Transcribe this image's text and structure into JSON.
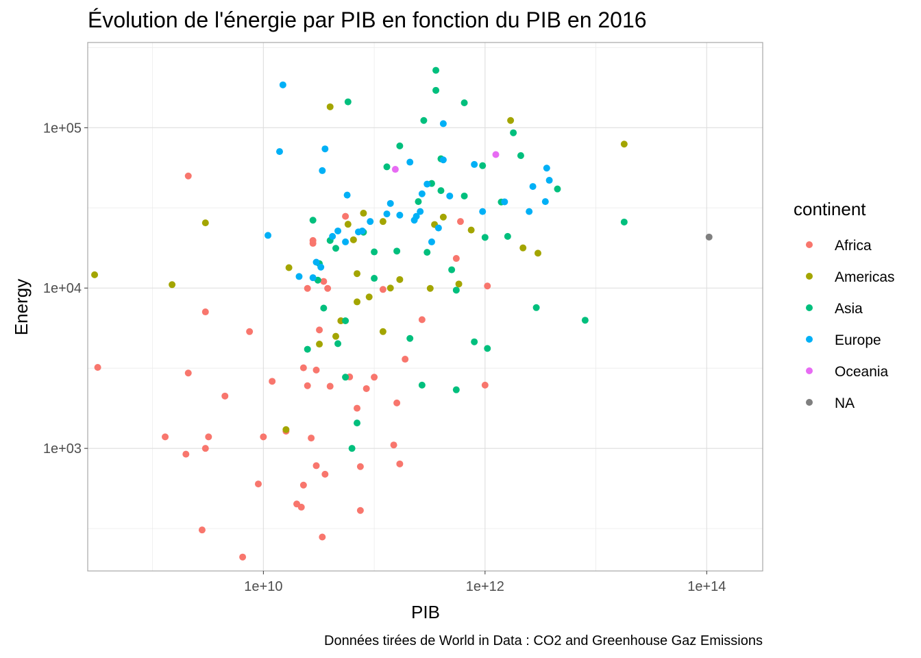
{
  "chart_data": {
    "type": "scatter",
    "title": "Évolution de l'énergie par PIB en fonction du PIB en 2016",
    "xlabel": "PIB",
    "ylabel": "Energy",
    "caption": "Données tirées de World in Data : CO2 and Greenhouse Gaz Emissions",
    "x_scale": "log10",
    "y_scale": "log10",
    "xlim": [
      260000000.0,
      320000000000000.0
    ],
    "ylim": [
      172,
      340000
    ],
    "x_ticks": [
      {
        "value": 10000000000.0,
        "label": "1e+10"
      },
      {
        "value": 1000000000000.0,
        "label": "1e+12"
      },
      {
        "value": 100000000000000.0,
        "label": "1e+14"
      }
    ],
    "y_ticks": [
      {
        "value": 1000,
        "label": "1e+03"
      },
      {
        "value": 10000,
        "label": "1e+04"
      },
      {
        "value": 100000,
        "label": "1e+05"
      }
    ],
    "grid": true,
    "legend": {
      "title": "continent",
      "position": "right"
    },
    "series": [
      {
        "name": "Africa",
        "color": "#F8766D",
        "points": [
          [
            320000000.0,
            3200
          ],
          [
            1300000000.0,
            1180
          ],
          [
            2000000000.0,
            920
          ],
          [
            2100000000.0,
            2950
          ],
          [
            2100000000.0,
            50000
          ],
          [
            2800000000.0,
            310
          ],
          [
            3000000000.0,
            7100
          ],
          [
            3000000000.0,
            1000
          ],
          [
            3200000000.0,
            1180
          ],
          [
            4500000000.0,
            2120
          ],
          [
            6500000000.0,
            210
          ],
          [
            7500000000.0,
            5350
          ],
          [
            9000000000.0,
            600
          ],
          [
            10000000000.0,
            1180
          ],
          [
            12000000000.0,
            2620
          ],
          [
            16000000000.0,
            1280
          ],
          [
            20000000000.0,
            450
          ],
          [
            22000000000.0,
            430
          ],
          [
            23000000000.0,
            590
          ],
          [
            23000000000.0,
            3180
          ],
          [
            25000000000.0,
            2460
          ],
          [
            25000000000.0,
            9950
          ],
          [
            27000000000.0,
            1160
          ],
          [
            28000000000.0,
            19000
          ],
          [
            28000000000.0,
            19800
          ],
          [
            30000000000.0,
            3080
          ],
          [
            30000000000.0,
            780
          ],
          [
            32000000000.0,
            5480
          ],
          [
            34000000000.0,
            280
          ],
          [
            35000000000.0,
            11000
          ],
          [
            36000000000.0,
            690
          ],
          [
            38000000000.0,
            9950
          ],
          [
            40000000000.0,
            2440
          ],
          [
            50000000000.0,
            6250
          ],
          [
            55000000000.0,
            28000
          ],
          [
            60000000000.0,
            2790
          ],
          [
            70000000000.0,
            1780
          ],
          [
            75000000000.0,
            410
          ],
          [
            75000000000.0,
            770
          ],
          [
            85000000000.0,
            2360
          ],
          [
            100000000000.0,
            2780
          ],
          [
            120000000000.0,
            9800
          ],
          [
            150000000000.0,
            1050
          ],
          [
            160000000000.0,
            1920
          ],
          [
            170000000000.0,
            800
          ],
          [
            190000000000.0,
            3600
          ],
          [
            270000000000.0,
            6350
          ],
          [
            550000000000.0,
            15300
          ],
          [
            600000000000.0,
            26000
          ],
          [
            1000000000000.0,
            2480
          ],
          [
            1050000000000.0,
            10300
          ]
        ]
      },
      {
        "name": "Americas",
        "color": "#A3A500",
        "points": [
          [
            300000000.0,
            12100
          ],
          [
            1500000000.0,
            10500
          ],
          [
            3000000000.0,
            25500
          ],
          [
            16000000000.0,
            1310
          ],
          [
            17000000000.0,
            13400
          ],
          [
            32000000000.0,
            4470
          ],
          [
            40000000000.0,
            135000
          ],
          [
            45000000000.0,
            5000
          ],
          [
            50000000000.0,
            6250
          ],
          [
            58000000000.0,
            25000
          ],
          [
            65000000000.0,
            20000
          ],
          [
            70000000000.0,
            12300
          ],
          [
            70000000000.0,
            8200
          ],
          [
            80000000000.0,
            29300
          ],
          [
            90000000000.0,
            8800
          ],
          [
            120000000000.0,
            5350
          ],
          [
            120000000000.0,
            26000
          ],
          [
            140000000000.0,
            10000
          ],
          [
            170000000000.0,
            11300
          ],
          [
            320000000000.0,
            9950
          ],
          [
            350000000000.0,
            24900
          ],
          [
            420000000000.0,
            27700
          ],
          [
            580000000000.0,
            10600
          ],
          [
            750000000000.0,
            23000
          ],
          [
            1700000000000.0,
            111000
          ],
          [
            2200000000000.0,
            17800
          ],
          [
            3000000000000.0,
            16500
          ],
          [
            18000000000000.0,
            79000
          ]
        ]
      },
      {
        "name": "Asia",
        "color": "#00BF7D",
        "points": [
          [
            25000000000.0,
            4150
          ],
          [
            28000000000.0,
            26500
          ],
          [
            31000000000.0,
            11200
          ],
          [
            32000000000.0,
            14200
          ],
          [
            35000000000.0,
            7500
          ],
          [
            40000000000.0,
            19800
          ],
          [
            45000000000.0,
            17700
          ],
          [
            47000000000.0,
            4500
          ],
          [
            55000000000.0,
            2780
          ],
          [
            55000000000.0,
            6250
          ],
          [
            58000000000.0,
            145000
          ],
          [
            63000000000.0,
            1000
          ],
          [
            70000000000.0,
            1440
          ],
          [
            80000000000.0,
            22300
          ],
          [
            100000000000.0,
            16800
          ],
          [
            100000000000.0,
            11500
          ],
          [
            130000000000.0,
            57000
          ],
          [
            160000000000.0,
            17000
          ],
          [
            170000000000.0,
            77000
          ],
          [
            210000000000.0,
            4850
          ],
          [
            250000000000.0,
            34600
          ],
          [
            270000000000.0,
            2480
          ],
          [
            280000000000.0,
            111000
          ],
          [
            300000000000.0,
            16700
          ],
          [
            330000000000.0,
            44900
          ],
          [
            360000000000.0,
            171000
          ],
          [
            360000000000.0,
            228000
          ],
          [
            400000000000.0,
            40500
          ],
          [
            400000000000.0,
            64000
          ],
          [
            500000000000.0,
            13000
          ],
          [
            550000000000.0,
            9700
          ],
          [
            550000000000.0,
            2320
          ],
          [
            650000000000.0,
            37500
          ],
          [
            650000000000.0,
            143000
          ],
          [
            800000000000.0,
            4620
          ],
          [
            950000000000.0,
            58000
          ],
          [
            1000000000000.0,
            20700
          ],
          [
            1050000000000.0,
            4200
          ],
          [
            1400000000000.0,
            34400
          ],
          [
            1600000000000.0,
            21000
          ],
          [
            1800000000000.0,
            93000
          ],
          [
            2100000000000.0,
            67000
          ],
          [
            2900000000000.0,
            7550
          ],
          [
            4500000000000.0,
            41500
          ],
          [
            8000000000000.0,
            6300
          ],
          [
            18000000000000.0,
            25800
          ]
        ]
      },
      {
        "name": "Europe",
        "color": "#00B0F6",
        "points": [
          [
            11000000000.0,
            21300
          ],
          [
            14000000000.0,
            71000
          ],
          [
            15000000000.0,
            185000
          ],
          [
            21000000000.0,
            11800
          ],
          [
            28000000000.0,
            11600
          ],
          [
            30000000000.0,
            14500
          ],
          [
            33000000000.0,
            13500
          ],
          [
            34000000000.0,
            54000
          ],
          [
            36000000000.0,
            73800
          ],
          [
            42000000000.0,
            21000
          ],
          [
            47000000000.0,
            22700
          ],
          [
            55000000000.0,
            19400
          ],
          [
            57000000000.0,
            38000
          ],
          [
            72000000000.0,
            22400
          ],
          [
            78000000000.0,
            22700
          ],
          [
            92000000000.0,
            26000
          ],
          [
            130000000000.0,
            29000
          ],
          [
            140000000000.0,
            33700
          ],
          [
            170000000000.0,
            28500
          ],
          [
            210000000000.0,
            61000
          ],
          [
            230000000000.0,
            26500
          ],
          [
            240000000000.0,
            28000
          ],
          [
            260000000000.0,
            30000
          ],
          [
            270000000000.0,
            38700
          ],
          [
            300000000000.0,
            44500
          ],
          [
            330000000000.0,
            19400
          ],
          [
            380000000000.0,
            23700
          ],
          [
            420000000000.0,
            106000
          ],
          [
            420000000000.0,
            63000
          ],
          [
            480000000000.0,
            37500
          ],
          [
            800000000000.0,
            59000
          ],
          [
            950000000000.0,
            30000
          ],
          [
            1500000000000.0,
            34500
          ],
          [
            2500000000000.0,
            30000
          ],
          [
            2700000000000.0,
            43000
          ],
          [
            3500000000000.0,
            34600
          ],
          [
            3600000000000.0,
            56000
          ],
          [
            3800000000000.0,
            47000
          ]
        ]
      },
      {
        "name": "Oceania",
        "color": "#E76BF3",
        "points": [
          [
            155000000000.0,
            55000
          ],
          [
            1250000000000.0,
            68000
          ]
        ]
      },
      {
        "name": "NA",
        "color": "#7F7F7F",
        "points": [
          [
            105000000000000.0,
            20800
          ]
        ]
      }
    ]
  }
}
